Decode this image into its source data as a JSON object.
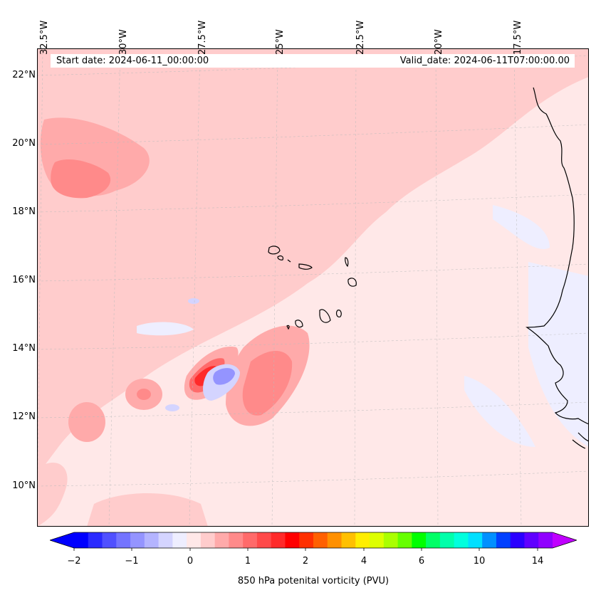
{
  "map": {
    "title_start": "Start date: 2024-06-11_00:00:00",
    "title_valid": "Valid_date: 2024-06-11T07:00:00.00",
    "lon_labels": [
      "32.5°W",
      "30°W",
      "27.5°W",
      "25°W",
      "22.5°W",
      "20°W",
      "17.5°W"
    ],
    "lat_labels": [
      "22°N",
      "20°N",
      "18°N",
      "16°N",
      "14°N",
      "12°N",
      "10°N"
    ],
    "field": "850 hPa potenital vorticity",
    "units": "PVU"
  },
  "colorbar": {
    "label": "850 hPa potenital vorticity (PVU)",
    "tick_labels": [
      "−2",
      "−1",
      "0",
      "1",
      "2",
      "4",
      "6",
      "10",
      "14"
    ],
    "colors": [
      "#0000ff",
      "#2a2aff",
      "#5050ff",
      "#7474ff",
      "#9494ff",
      "#b4b4ff",
      "#d4d4ff",
      "#eeeeff",
      "#ffe8e8",
      "#ffcccc",
      "#ffaaaa",
      "#ff8a8a",
      "#ff6a6a",
      "#ff4a4a",
      "#ff2a2a",
      "#ff0000",
      "#ff3000",
      "#ff6000",
      "#ff9000",
      "#ffc000",
      "#ffee00",
      "#ddff00",
      "#aaff00",
      "#66ff00",
      "#00ff00",
      "#00ff66",
      "#00ffaa",
      "#00ffdd",
      "#00e0ff",
      "#0090ff",
      "#0040ff",
      "#2a00ff",
      "#6000ff",
      "#9000ff"
    ],
    "extend_min_color": "#0000ff",
    "extend_max_color": "#c000ff"
  }
}
